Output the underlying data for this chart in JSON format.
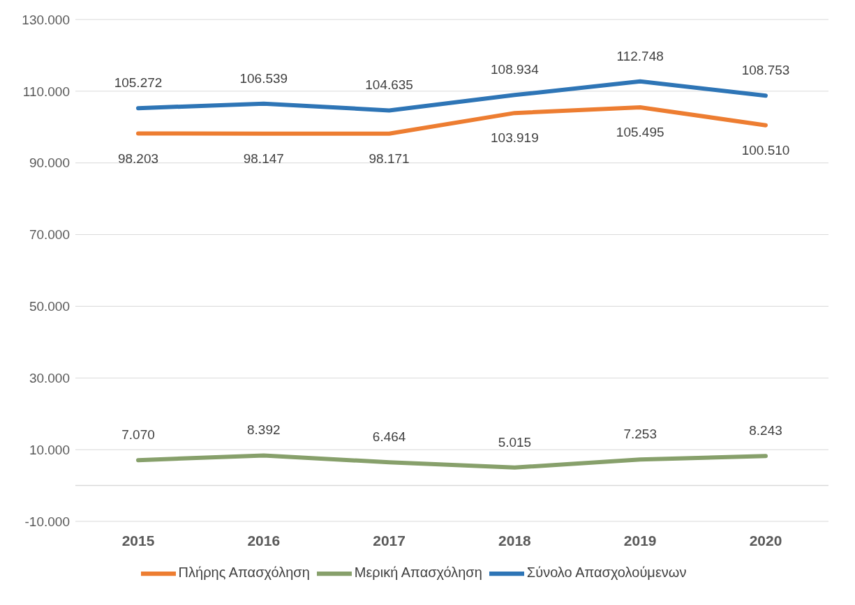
{
  "chart_data": {
    "type": "line",
    "categories": [
      "2015",
      "2016",
      "2017",
      "2018",
      "2019",
      "2020"
    ],
    "series": [
      {
        "name": "Πλήρης Απασχόληση",
        "color": "#ed7d31",
        "values": [
          98203,
          98147,
          98171,
          103919,
          105495,
          100510
        ],
        "value_labels": [
          "98.203",
          "98.147",
          "98.171",
          "103.919",
          "105.495",
          "100.510"
        ]
      },
      {
        "name": "Μερική Απασχόληση",
        "color": "#87a06b",
        "values": [
          7070,
          8392,
          6464,
          5015,
          7253,
          8243
        ],
        "value_labels": [
          "7.070",
          "8.392",
          "6.464",
          "5.015",
          "7.253",
          "8.243"
        ]
      },
      {
        "name": "Σύνολο Απασχολούμενων",
        "color": "#2e75b6",
        "values": [
          105272,
          106539,
          104635,
          108934,
          112748,
          108753
        ],
        "value_labels": [
          "105.272",
          "106.539",
          "104.635",
          "108.934",
          "112.748",
          "108.753"
        ]
      }
    ],
    "ylim": [
      -10000,
      130000
    ],
    "yticks": [
      {
        "value": -10000,
        "label": "-10.000"
      },
      {
        "value": 10000,
        "label": "10.000"
      },
      {
        "value": 30000,
        "label": "30.000"
      },
      {
        "value": 50000,
        "label": "50.000"
      },
      {
        "value": 70000,
        "label": "70.000"
      },
      {
        "value": 90000,
        "label": "90.000"
      },
      {
        "value": 110000,
        "label": "110.000"
      },
      {
        "value": 130000,
        "label": "130.000"
      }
    ],
    "ref_lines": [
      {
        "axis": "y",
        "value": 0,
        "color": "#d9d9d9"
      }
    ],
    "grid": "y",
    "legend": "bottom",
    "marker": "none",
    "line_style": "solid"
  }
}
